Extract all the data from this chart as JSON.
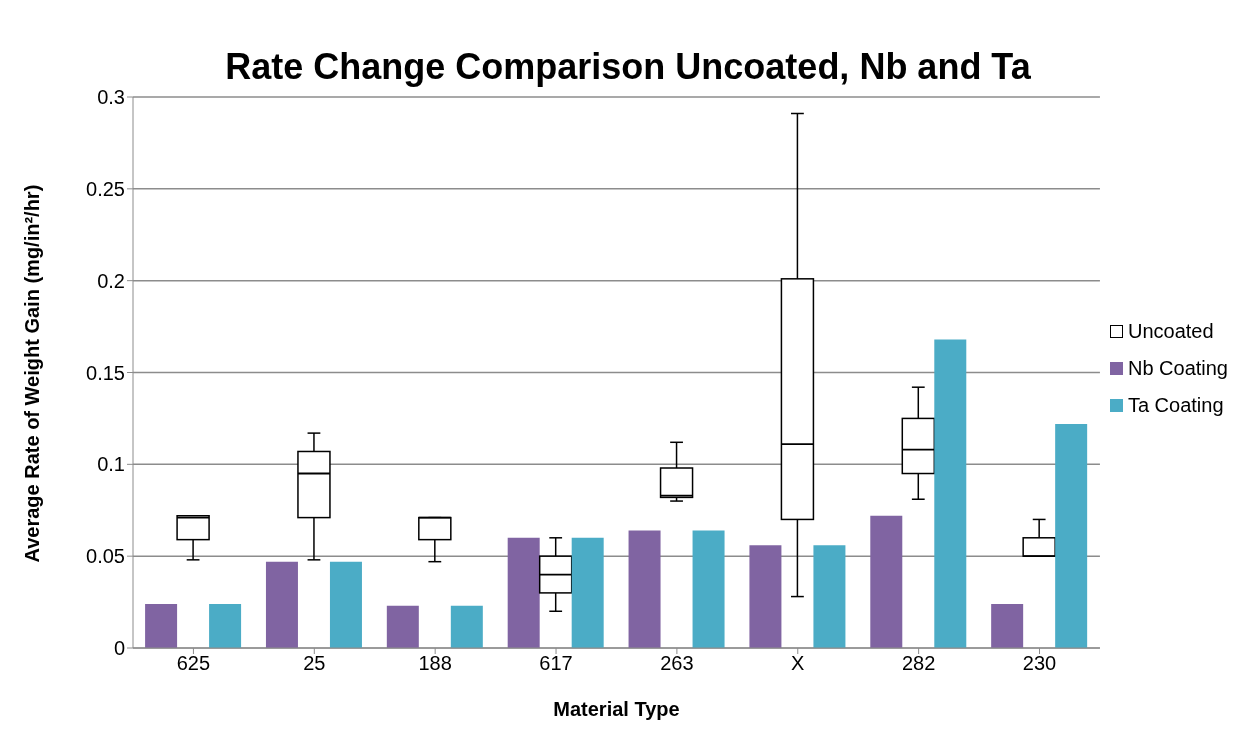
{
  "chart_data": {
    "type": "bar",
    "title": "Rate Change Comparison Uncoated, Nb and Ta",
    "xlabel": "Material Type",
    "ylabel": "Average Rate of Weight Gain (mg/in²/hr)",
    "categories": [
      "625",
      "25",
      "188",
      "617",
      "263",
      "X",
      "282",
      "230"
    ],
    "series": [
      {
        "name": "Nb Coating",
        "color": "#8064a2",
        "values": [
          0.024,
          0.047,
          0.023,
          0.06,
          0.064,
          0.056,
          0.072,
          0.024
        ]
      },
      {
        "name": "Uncoated",
        "type": "box",
        "color": "#000000",
        "boxes": [
          {
            "low": 0.048,
            "q1": 0.059,
            "median": 0.071,
            "q3": 0.072,
            "high": 0.072
          },
          {
            "low": 0.048,
            "q1": 0.071,
            "median": 0.095,
            "q3": 0.107,
            "high": 0.117
          },
          {
            "low": 0.047,
            "q1": 0.059,
            "median": 0.071,
            "q3": 0.071,
            "high": 0.071
          },
          {
            "low": 0.02,
            "q1": 0.03,
            "median": 0.04,
            "q3": 0.05,
            "high": 0.06
          },
          {
            "low": 0.08,
            "q1": 0.082,
            "median": 0.083,
            "q3": 0.098,
            "high": 0.112
          },
          {
            "low": 0.028,
            "q1": 0.07,
            "median": 0.111,
            "q3": 0.201,
            "high": 0.291
          },
          {
            "low": 0.081,
            "q1": 0.095,
            "median": 0.108,
            "q3": 0.125,
            "high": 0.142
          },
          {
            "low": 0.05,
            "q1": 0.05,
            "median": 0.05,
            "q3": 0.06,
            "high": 0.07
          }
        ]
      },
      {
        "name": "Ta Coating",
        "color": "#4bacc6",
        "values": [
          0.024,
          0.047,
          0.023,
          0.06,
          0.064,
          0.056,
          0.168,
          0.122
        ]
      }
    ],
    "ylim": [
      0,
      0.3
    ],
    "yticks": [
      0,
      0.05,
      0.1,
      0.15,
      0.2,
      0.25,
      0.3
    ],
    "grid": "y",
    "legend": "right"
  }
}
